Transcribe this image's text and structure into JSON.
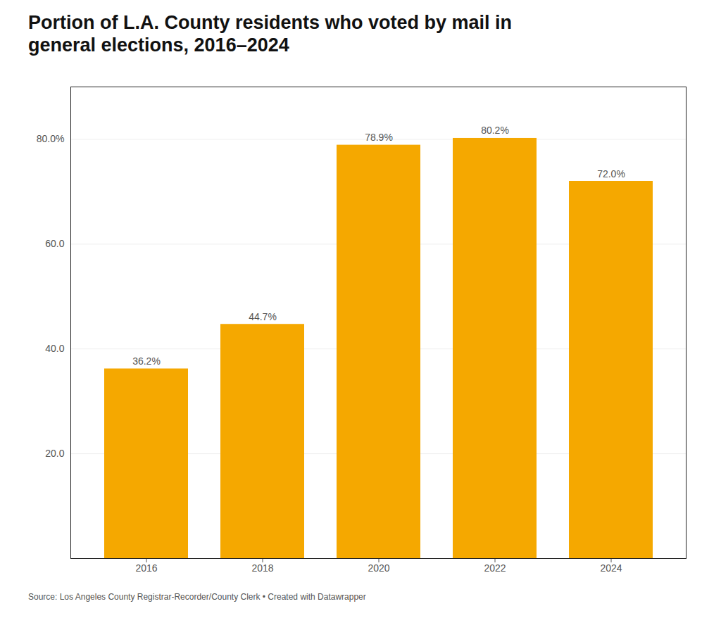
{
  "chart_data": {
    "type": "bar",
    "title": "Portion of L.A. County residents who voted by mail in\ngeneral elections, 2016–2024",
    "source": "Source: Los Angeles County Registrar-Recorder/County Clerk • Created with Datawrapper",
    "categories": [
      "2016",
      "2018",
      "2020",
      "2022",
      "2024"
    ],
    "values": [
      36.2,
      44.7,
      78.9,
      80.2,
      72.0
    ],
    "value_labels": [
      "36.2%",
      "44.7%",
      "78.9%",
      "80.2%",
      "72.0%"
    ],
    "data_labels": true,
    "color": "#F5A800",
    "ylim": [
      0,
      90
    ],
    "yticks": [
      {
        "value": 20,
        "label": "20.0"
      },
      {
        "value": 40,
        "label": "40.0"
      },
      {
        "value": 60,
        "label": "60.0"
      },
      {
        "value": 80,
        "label": "80.0%"
      }
    ],
    "grid": true
  }
}
